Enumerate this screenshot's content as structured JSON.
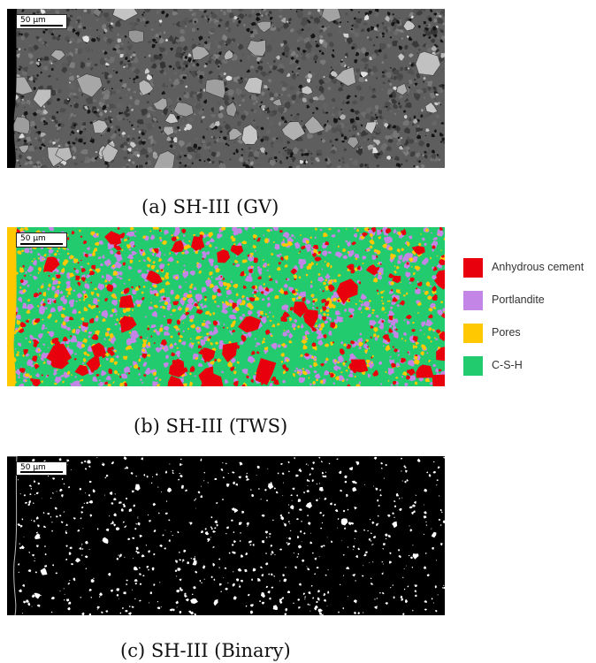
{
  "figure": {
    "panels": [
      {
        "caption": "(a) SH-III (GV)",
        "scale_bar": "50 µm"
      },
      {
        "caption": "(b) SH-III (TWS)",
        "scale_bar": "50 µm"
      },
      {
        "caption": "(c) SH-III (Binary)",
        "scale_bar": "50 µm"
      }
    ],
    "legend": [
      {
        "label": "Anhydrous cement",
        "color": "#e8000c"
      },
      {
        "label": "Portlandite",
        "color": "#c486e6"
      },
      {
        "label": "Pores",
        "color": "#ffc800"
      },
      {
        "label": "C-S-H",
        "color": "#22cc6e"
      }
    ]
  }
}
